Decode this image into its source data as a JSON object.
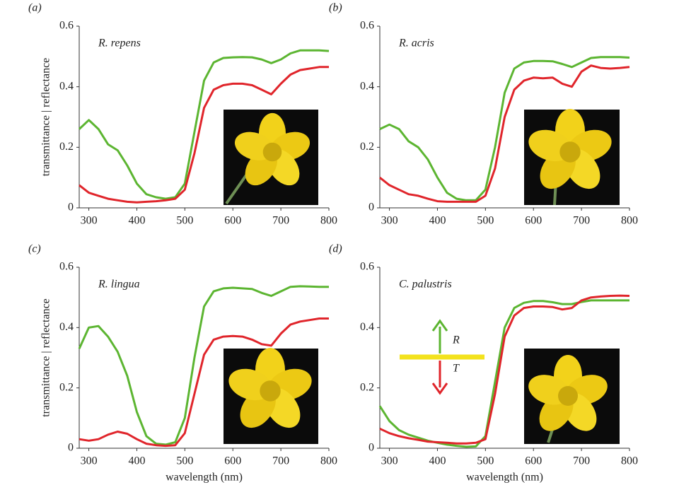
{
  "chart_data": [
    {
      "type": "line",
      "label": "(a)",
      "title": "R. repens",
      "y_label": "transmittance | reflectance",
      "x": [
        280,
        300,
        320,
        340,
        360,
        380,
        400,
        420,
        440,
        460,
        480,
        500,
        520,
        540,
        560,
        580,
        600,
        620,
        640,
        660,
        680,
        700,
        720,
        740,
        760,
        780,
        800
      ],
      "series": [
        {
          "color": "#5cb531",
          "values": [
            0.26,
            0.29,
            0.26,
            0.21,
            0.19,
            0.14,
            0.08,
            0.045,
            0.035,
            0.03,
            0.035,
            0.08,
            0.25,
            0.42,
            0.48,
            0.495,
            0.497,
            0.498,
            0.497,
            0.49,
            0.478,
            0.49,
            0.51,
            0.52,
            0.52,
            0.52,
            0.518
          ]
        },
        {
          "color": "#e0252b",
          "values": [
            0.075,
            0.05,
            0.04,
            0.03,
            0.025,
            0.02,
            0.018,
            0.02,
            0.022,
            0.025,
            0.03,
            0.06,
            0.18,
            0.33,
            0.39,
            0.405,
            0.41,
            0.41,
            0.405,
            0.39,
            0.375,
            0.41,
            0.44,
            0.455,
            0.46,
            0.465,
            0.465
          ]
        }
      ],
      "xlim": [
        280,
        800
      ],
      "xticks": [
        300,
        400,
        500,
        600,
        700,
        800
      ],
      "ylim": [
        0,
        0.6
      ],
      "yticks": [
        0,
        0.2,
        0.4,
        0.6
      ]
    },
    {
      "type": "line",
      "label": "(b)",
      "title": "R. acris",
      "x": [
        280,
        300,
        320,
        340,
        360,
        380,
        400,
        420,
        440,
        460,
        480,
        500,
        520,
        540,
        560,
        580,
        600,
        620,
        640,
        660,
        680,
        700,
        720,
        740,
        760,
        780,
        800
      ],
      "series": [
        {
          "color": "#5cb531",
          "values": [
            0.26,
            0.275,
            0.26,
            0.22,
            0.2,
            0.16,
            0.1,
            0.05,
            0.03,
            0.025,
            0.025,
            0.06,
            0.2,
            0.38,
            0.46,
            0.48,
            0.485,
            0.485,
            0.484,
            0.475,
            0.465,
            0.48,
            0.495,
            0.498,
            0.498,
            0.498,
            0.496
          ]
        },
        {
          "color": "#e0252b",
          "values": [
            0.1,
            0.075,
            0.06,
            0.045,
            0.04,
            0.03,
            0.022,
            0.02,
            0.02,
            0.02,
            0.02,
            0.04,
            0.13,
            0.3,
            0.39,
            0.42,
            0.43,
            0.428,
            0.43,
            0.41,
            0.4,
            0.45,
            0.47,
            0.462,
            0.46,
            0.462,
            0.465
          ]
        }
      ],
      "xlim": [
        280,
        800
      ],
      "xticks": [
        300,
        400,
        500,
        600,
        700,
        800
      ],
      "ylim": [
        0,
        0.6
      ],
      "yticks": [
        0,
        0.2,
        0.4,
        0.6
      ]
    },
    {
      "type": "line",
      "label": "(c)",
      "title": "R. lingua",
      "y_label": "transmittance | reflectance",
      "x_label": "wavelength (nm)",
      "x": [
        280,
        300,
        320,
        340,
        360,
        380,
        400,
        420,
        440,
        460,
        480,
        500,
        520,
        540,
        560,
        580,
        600,
        620,
        640,
        660,
        680,
        700,
        720,
        740,
        760,
        780,
        800
      ],
      "series": [
        {
          "color": "#5cb531",
          "values": [
            0.33,
            0.4,
            0.405,
            0.37,
            0.32,
            0.24,
            0.12,
            0.04,
            0.015,
            0.012,
            0.02,
            0.1,
            0.3,
            0.47,
            0.52,
            0.53,
            0.532,
            0.53,
            0.528,
            0.515,
            0.505,
            0.52,
            0.535,
            0.537,
            0.536,
            0.535,
            0.535
          ]
        },
        {
          "color": "#e0252b",
          "values": [
            0.03,
            0.025,
            0.03,
            0.045,
            0.055,
            0.048,
            0.03,
            0.015,
            0.01,
            0.008,
            0.01,
            0.05,
            0.18,
            0.31,
            0.36,
            0.37,
            0.372,
            0.37,
            0.36,
            0.345,
            0.34,
            0.38,
            0.41,
            0.42,
            0.425,
            0.43,
            0.43
          ]
        }
      ],
      "xlim": [
        280,
        800
      ],
      "xticks": [
        300,
        400,
        500,
        600,
        700,
        800
      ],
      "ylim": [
        0,
        0.6
      ],
      "yticks": [
        0,
        0.2,
        0.4,
        0.6
      ]
    },
    {
      "type": "line",
      "label": "(d)",
      "title": "C. palustris",
      "x_label": "wavelength (nm)",
      "x": [
        280,
        300,
        320,
        340,
        360,
        380,
        400,
        420,
        440,
        460,
        480,
        500,
        520,
        540,
        560,
        580,
        600,
        620,
        640,
        660,
        680,
        700,
        720,
        740,
        760,
        780,
        800
      ],
      "series": [
        {
          "name": "R",
          "color": "#5cb531",
          "values": [
            0.14,
            0.09,
            0.06,
            0.045,
            0.035,
            0.025,
            0.018,
            0.012,
            0.008,
            0.005,
            0.006,
            0.04,
            0.22,
            0.4,
            0.465,
            0.482,
            0.488,
            0.488,
            0.484,
            0.478,
            0.478,
            0.485,
            0.49,
            0.49,
            0.49,
            0.49,
            0.49
          ]
        },
        {
          "name": "T",
          "color": "#e0252b",
          "values": [
            0.065,
            0.05,
            0.04,
            0.033,
            0.028,
            0.022,
            0.02,
            0.018,
            0.016,
            0.016,
            0.018,
            0.03,
            0.18,
            0.37,
            0.44,
            0.465,
            0.47,
            0.47,
            0.468,
            0.46,
            0.465,
            0.49,
            0.5,
            0.503,
            0.505,
            0.506,
            0.505
          ]
        }
      ],
      "xlim": [
        280,
        800
      ],
      "xticks": [
        300,
        400,
        500,
        600,
        700,
        800
      ],
      "ylim": [
        0,
        0.6
      ],
      "yticks": [
        0,
        0.2,
        0.4,
        0.6
      ]
    }
  ]
}
